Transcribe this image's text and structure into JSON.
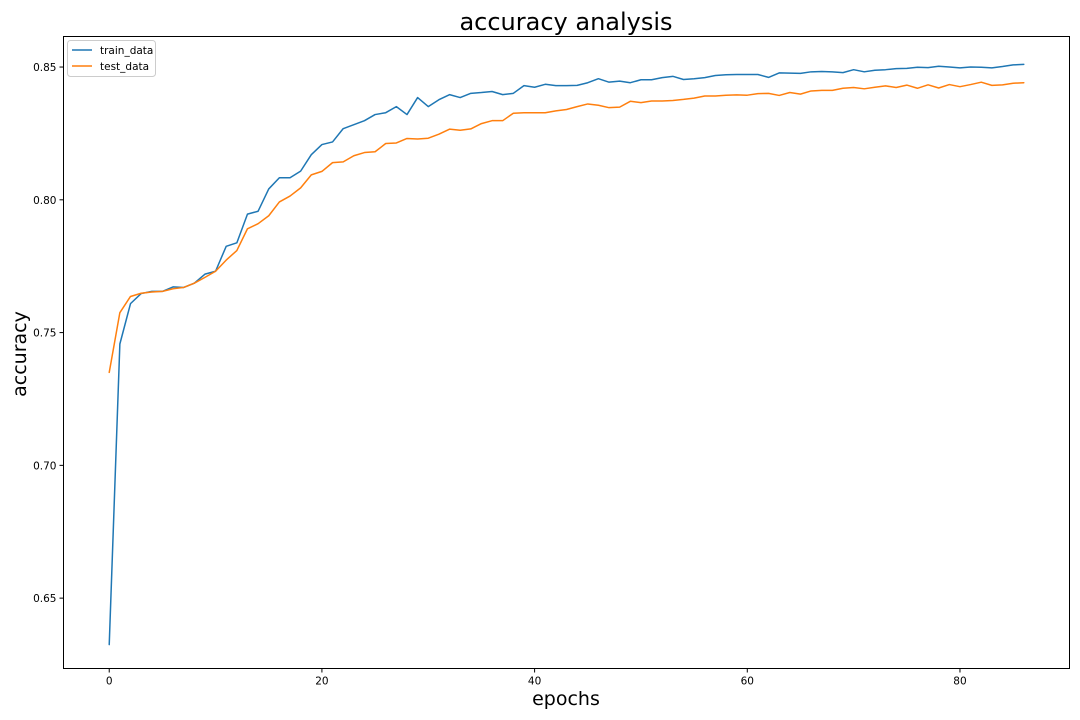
{
  "chart_data": {
    "type": "line",
    "title": "accuracy analysis",
    "xlabel": "epochs",
    "ylabel": "accuracy",
    "xlim": [
      -4.3,
      90.3
    ],
    "ylim": [
      0.6235,
      0.8615
    ],
    "xticks": [
      0,
      20,
      40,
      60,
      80
    ],
    "yticks": [
      0.65,
      0.7,
      0.75,
      0.8,
      0.85
    ],
    "xtick_labels": [
      "0",
      "20",
      "40",
      "60",
      "80"
    ],
    "ytick_labels": [
      "0.65",
      "0.70",
      "0.75",
      "0.80",
      "0.85"
    ],
    "grid": false,
    "legend_position": "top-left",
    "series": [
      {
        "name": "train_data",
        "color": "#1f77b4",
        "values": [
          0.6325,
          0.7457,
          0.7609,
          0.7647,
          0.7655,
          0.7655,
          0.7672,
          0.767,
          0.7686,
          0.772,
          0.7731,
          0.7825,
          0.7838,
          0.7946,
          0.7957,
          0.8041,
          0.8083,
          0.8083,
          0.8108,
          0.817,
          0.8208,
          0.8218,
          0.8268,
          0.8283,
          0.8298,
          0.8321,
          0.8328,
          0.8351,
          0.8321,
          0.8385,
          0.8351,
          0.8377,
          0.8396,
          0.8385,
          0.8401,
          0.8404,
          0.8408,
          0.8396,
          0.8401,
          0.843,
          0.8424,
          0.8435,
          0.843,
          0.843,
          0.8431,
          0.8441,
          0.8456,
          0.8443,
          0.8447,
          0.8441,
          0.8452,
          0.8452,
          0.846,
          0.8465,
          0.8453,
          0.8456,
          0.846,
          0.8468,
          0.8471,
          0.8472,
          0.8472,
          0.8472,
          0.8461,
          0.8478,
          0.8477,
          0.8476,
          0.8482,
          0.8483,
          0.8482,
          0.8479,
          0.849,
          0.8482,
          0.8488,
          0.849,
          0.8494,
          0.8495,
          0.8499,
          0.8498,
          0.8503,
          0.85,
          0.8497,
          0.85,
          0.8499,
          0.8497,
          0.8502,
          0.8508,
          0.851
        ]
      },
      {
        "name": "test_data",
        "color": "#ff7f0e",
        "values": [
          0.735,
          0.7575,
          0.7636,
          0.7648,
          0.7653,
          0.7655,
          0.7665,
          0.767,
          0.7686,
          0.7708,
          0.7731,
          0.7773,
          0.7809,
          0.7891,
          0.791,
          0.794,
          0.7992,
          0.8014,
          0.8045,
          0.8094,
          0.8107,
          0.814,
          0.8143,
          0.8166,
          0.8178,
          0.8181,
          0.8212,
          0.8214,
          0.8231,
          0.8229,
          0.8232,
          0.8247,
          0.8266,
          0.8262,
          0.8267,
          0.8287,
          0.8298,
          0.8298,
          0.8326,
          0.8328,
          0.8328,
          0.8328,
          0.8335,
          0.834,
          0.8351,
          0.8361,
          0.8356,
          0.8347,
          0.8349,
          0.8371,
          0.8366,
          0.8372,
          0.8372,
          0.8374,
          0.8378,
          0.8383,
          0.8391,
          0.8391,
          0.8394,
          0.8395,
          0.8394,
          0.84,
          0.8401,
          0.8393,
          0.8404,
          0.8398,
          0.841,
          0.8412,
          0.8412,
          0.842,
          0.8423,
          0.8418,
          0.8424,
          0.8429,
          0.8423,
          0.8432,
          0.842,
          0.8433,
          0.8421,
          0.8434,
          0.8426,
          0.8434,
          0.8443,
          0.8431,
          0.8433,
          0.8439,
          0.8441
        ]
      }
    ]
  }
}
